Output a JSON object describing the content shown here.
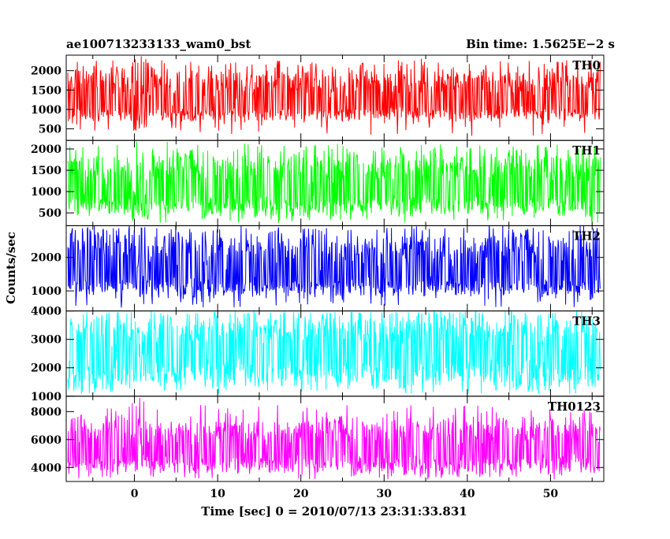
{
  "title_left": "ae100713233133_wam0_bst",
  "title_right": "Bin time: 1.5625E−2 s",
  "chart_data": {
    "type": "line",
    "xlabel": "Time [sec] 0 = 2010/07/13 23:31:33.831",
    "ylabel": "Counts/sec",
    "xlim": [
      -8.2,
      56.4
    ],
    "x_ticks": [
      0,
      10,
      20,
      30,
      40,
      50
    ],
    "grid": false,
    "bin_time": 0.015625,
    "x_range": [
      -8,
      56
    ],
    "panels": [
      {
        "name": "TH0",
        "color": "#ff0000",
        "ylim": [
          200,
          2400
        ],
        "y_ticks": [
          500,
          1000,
          1500,
          2000
        ],
        "baseline": 1150,
        "noise_low": 750,
        "noise_high": 2100,
        "burst": {
          "start": -0.3,
          "end": 1.6,
          "peak": 2400,
          "min": 400
        }
      },
      {
        "name": "TH1",
        "color": "#00ff00",
        "ylim": [
          200,
          2200
        ],
        "y_ticks": [
          500,
          1000,
          1500,
          2000
        ],
        "baseline": 1000,
        "noise_low": 500,
        "noise_high": 1950,
        "burst": {
          "start": -0.3,
          "end": 1.6,
          "peak": 2200,
          "min": 300
        }
      },
      {
        "name": "TH2",
        "color": "#0000ff",
        "ylim": [
          400,
          2950
        ],
        "y_ticks": [
          1000,
          2000
        ],
        "baseline": 1500,
        "noise_low": 900,
        "noise_high": 2800,
        "burst": {
          "start": -0.3,
          "end": 1.6,
          "peak": 2950,
          "min": 600
        }
      },
      {
        "name": "TH3",
        "color": "#00ffff",
        "ylim": [
          1000,
          4000
        ],
        "y_ticks": [
          1000,
          2000,
          3000,
          4000
        ],
        "baseline": 2500,
        "noise_low": 1400,
        "noise_high": 3900,
        "burst": {
          "start": -0.3,
          "end": 1.6,
          "peak": 3900,
          "min": 1500
        }
      },
      {
        "name": "TH0123",
        "color": "#ff00ff",
        "ylim": [
          3000,
          9100
        ],
        "y_ticks": [
          4000,
          6000,
          8000
        ],
        "baseline": 5200,
        "noise_low": 3700,
        "noise_high": 7600,
        "burst": {
          "start": -0.3,
          "end": 1.6,
          "peak": 9100,
          "min": 3500
        }
      }
    ]
  }
}
